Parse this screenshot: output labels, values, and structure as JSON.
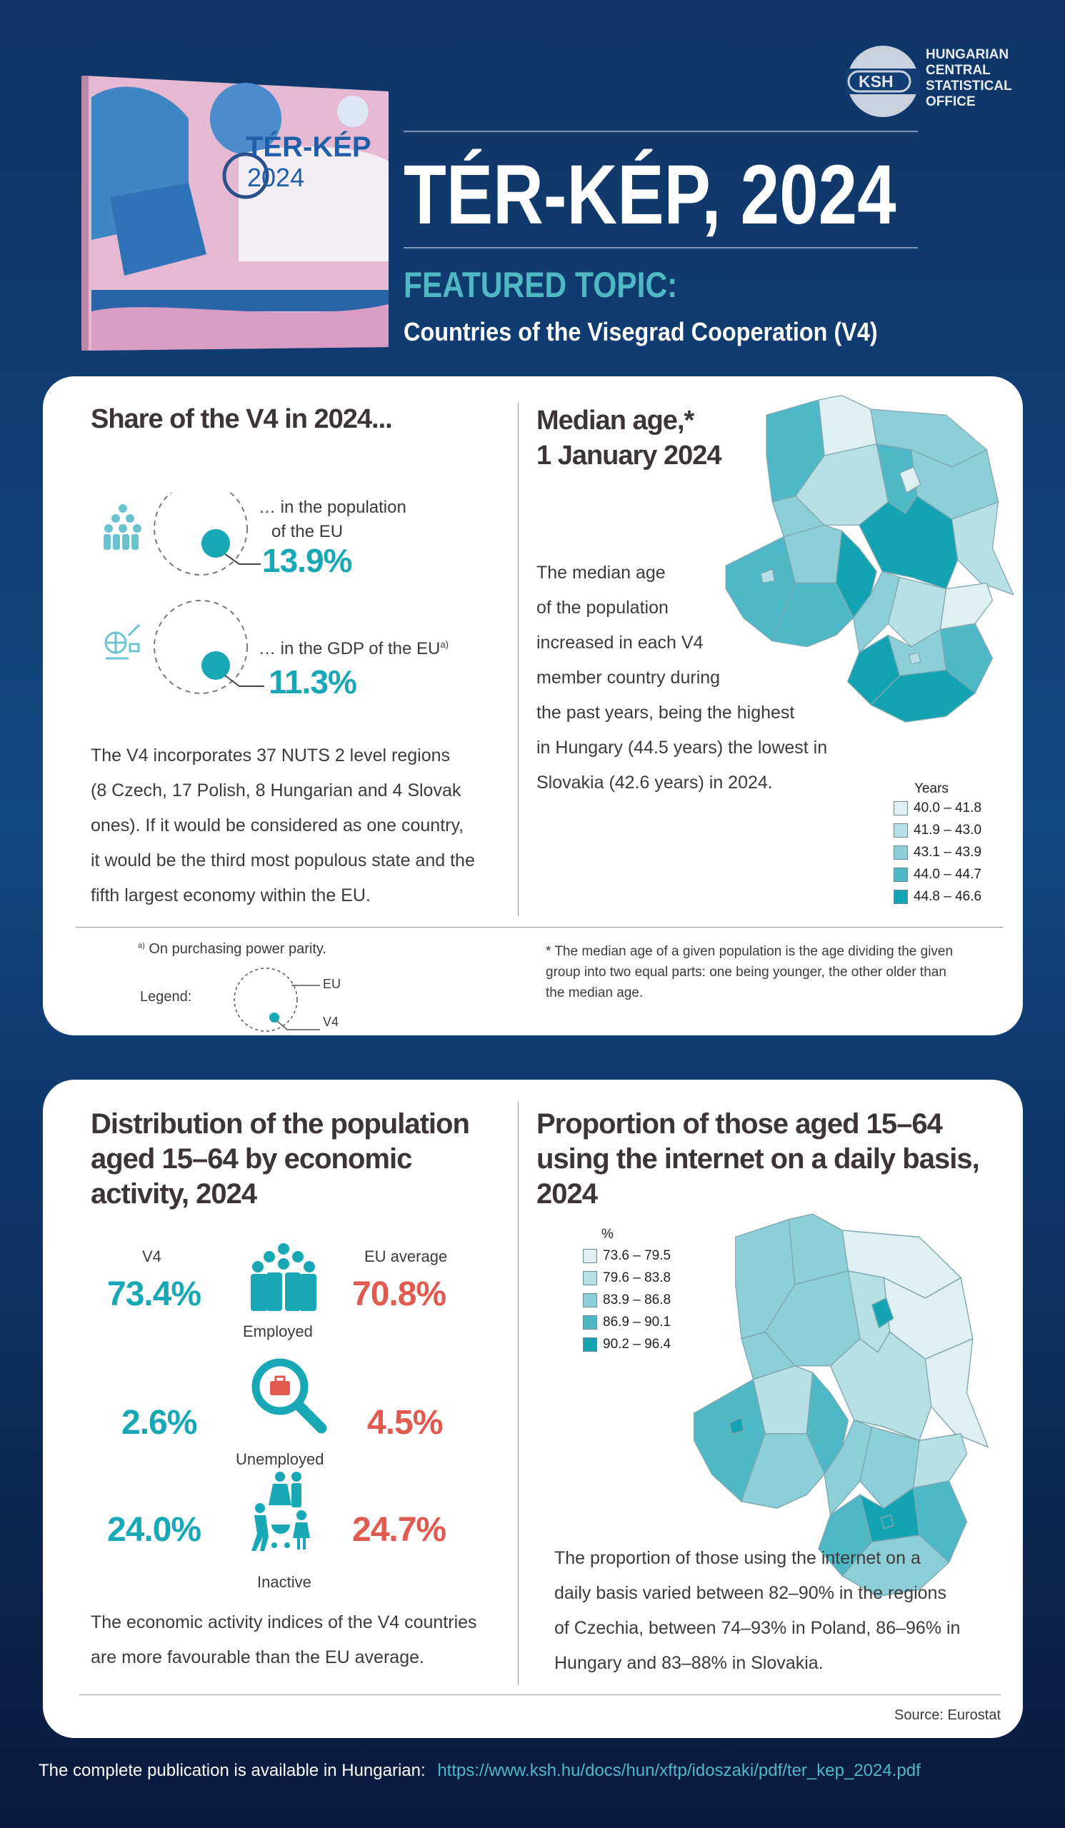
{
  "header": {
    "logo_abbr": "KSH",
    "logo_text": [
      "HUNGARIAN",
      "CENTRAL",
      "STATISTICAL",
      "OFFICE"
    ],
    "title": "TÉR-KÉP, 2024",
    "featured_label": "FEATURED TOPIC:",
    "featured_topic": "Countries of the Visegrad Cooperation (V4)",
    "book_cover_title": "TÉR-KÉP",
    "book_cover_year": "2024"
  },
  "share": {
    "heading": "Share of the V4 in 2024...",
    "population_label_1": "… in the population",
    "population_label_2": "of the EU",
    "population_value": "13.9%",
    "gdp_label": "… in the GDP of the EU",
    "gdp_sup": "a)",
    "gdp_value": "11.3%",
    "paragraph": [
      "The V4 incorporates 37 NUTS 2 level regions",
      "(8 Czech, 17 Polish, 8 Hungarian and 4 Slovak",
      "ones). If it would be considered as one country,",
      "it would be the third most populous state and the",
      "fifth largest economy within the EU."
    ],
    "footnote_sup": "a)",
    "footnote": "On purchasing power parity.",
    "legend_label": "Legend:",
    "legend_eu": "EU",
    "legend_v4": "V4"
  },
  "median": {
    "heading_1": "Median age,*",
    "heading_2": "1 January 2024",
    "paragraph": [
      "The median age",
      "of the population",
      "increased in each V4",
      "member country during",
      "the past years, being the highest",
      "in Hungary (44.5 years) the lowest in",
      "Slovakia (42.6 years) in 2024."
    ],
    "legend_title": "Years",
    "legend": [
      "40.0 – 41.8",
      "41.9 – 43.0",
      "43.1 – 43.9",
      "44.0 – 44.7",
      "44.8 – 46.6"
    ],
    "footnote": [
      "* The median age of a given population is the age dividing the given",
      "group into two equal parts: one being younger, the other older than",
      "the median age."
    ]
  },
  "colors": {
    "c1": "#dff0f3",
    "c2": "#b6e0e6",
    "c3": "#8dcfd8",
    "c4": "#4fb8c6",
    "c5": "#14a3b2",
    "teal": "#17a7b5",
    "red": "#e05a4f"
  },
  "activity": {
    "heading": [
      "Distribution of the population",
      "aged 15–64 by economic",
      "activity, 2024"
    ],
    "col_v4": "V4",
    "col_eu": "EU average",
    "rows": [
      {
        "label": "Employed",
        "v4": "73.4%",
        "eu": "70.8%"
      },
      {
        "label": "Unemployed",
        "v4": "2.6%",
        "eu": "4.5%"
      },
      {
        "label": "Inactive",
        "v4": "24.0%",
        "eu": "24.7%"
      }
    ],
    "paragraph": [
      "The economic activity indices of the V4 countries",
      "are more favourable than the EU average."
    ]
  },
  "internet": {
    "heading": [
      "Proportion of those aged 15–64",
      "using the internet on a daily basis,",
      "2024"
    ],
    "legend_title": "%",
    "legend": [
      "73.6 – 79.5",
      "79.6 – 83.8",
      "83.9 – 86.8",
      "86.9 – 90.1",
      "90.2 – 96.4"
    ],
    "paragraph": [
      "The proportion of those using the internet on a",
      "daily basis varied between 82–90% in the regions",
      "of Czechia, between 74–93% in Poland, 86–96% in",
      "Hungary and 83–88% in Slovakia."
    ],
    "source": "Source: Eurostat"
  },
  "footer": {
    "text": "The complete publication is available in Hungarian:",
    "link": "https://www.ksh.hu/docs/hun/xftp/idoszaki/pdf/ter_kep_2024.pdf"
  }
}
